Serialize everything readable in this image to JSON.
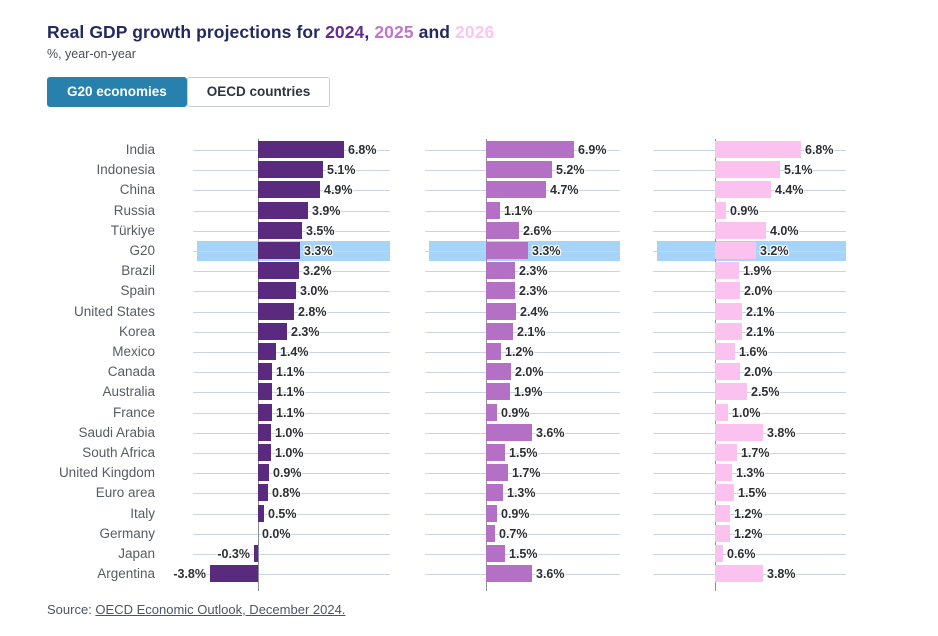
{
  "header": {
    "title_parts": [
      {
        "text": "Real GDP growth projections for ",
        "color": "#232b5e"
      },
      {
        "text": "2024",
        "color": "#682c90"
      },
      {
        "text": ", ",
        "color": "#232b5e"
      },
      {
        "text": "2025",
        "color": "#c176cc"
      },
      {
        "text": " and ",
        "color": "#232b5e"
      },
      {
        "text": "2026",
        "color": "#fbc6f2"
      }
    ],
    "subtitle": "%, year-on-year"
  },
  "tabs": [
    {
      "label": "G20 economies",
      "active": true
    },
    {
      "label": "OECD countries",
      "active": false
    }
  ],
  "source": {
    "prefix": "Source: ",
    "link": "OECD Economic Outlook, December 2024."
  },
  "chart_data": {
    "type": "bar",
    "orientation": "horizontal",
    "title": "Real GDP growth projections for 2024, 2025 and 2026",
    "subtitle": "%, year-on-year",
    "categories": [
      "India",
      "Indonesia",
      "China",
      "Russia",
      "Türkiye",
      "G20",
      "Brazil",
      "Spain",
      "United States",
      "Korea",
      "Mexico",
      "Canada",
      "Australia",
      "France",
      "Saudi Arabia",
      "South Africa",
      "United Kingdom",
      "Euro area",
      "Italy",
      "Germany",
      "Japan",
      "Argentina"
    ],
    "series": [
      {
        "name": "2024",
        "color": "#5a2a7e",
        "values": [
          6.8,
          5.1,
          4.9,
          3.9,
          3.5,
          3.3,
          3.2,
          3.0,
          2.8,
          2.3,
          1.4,
          1.1,
          1.1,
          1.1,
          1.0,
          1.0,
          0.9,
          0.8,
          0.5,
          0.0,
          -0.3,
          -3.8
        ]
      },
      {
        "name": "2025",
        "color": "#b470c4",
        "values": [
          6.9,
          5.2,
          4.7,
          1.1,
          2.6,
          3.3,
          2.3,
          2.3,
          2.4,
          2.1,
          1.2,
          2.0,
          1.9,
          0.9,
          3.6,
          1.5,
          1.7,
          1.3,
          0.9,
          0.7,
          1.5,
          3.6
        ]
      },
      {
        "name": "2026",
        "color": "#fbc2f0",
        "values": [
          6.8,
          5.1,
          4.4,
          0.9,
          4.0,
          3.2,
          1.9,
          2.0,
          2.1,
          2.1,
          1.6,
          2.0,
          2.5,
          1.0,
          3.8,
          1.7,
          1.3,
          1.5,
          1.2,
          1.2,
          0.6,
          3.8
        ]
      }
    ],
    "highlight_category": "G20",
    "highlight_color": "#a6d3f8",
    "value_format": "one decimal + %",
    "xlim_est": [
      -5.1,
      10.4
    ],
    "gridlines": "per-row horizontal, vertical zero axis per panel",
    "legend_position": "encoded in title colors"
  }
}
